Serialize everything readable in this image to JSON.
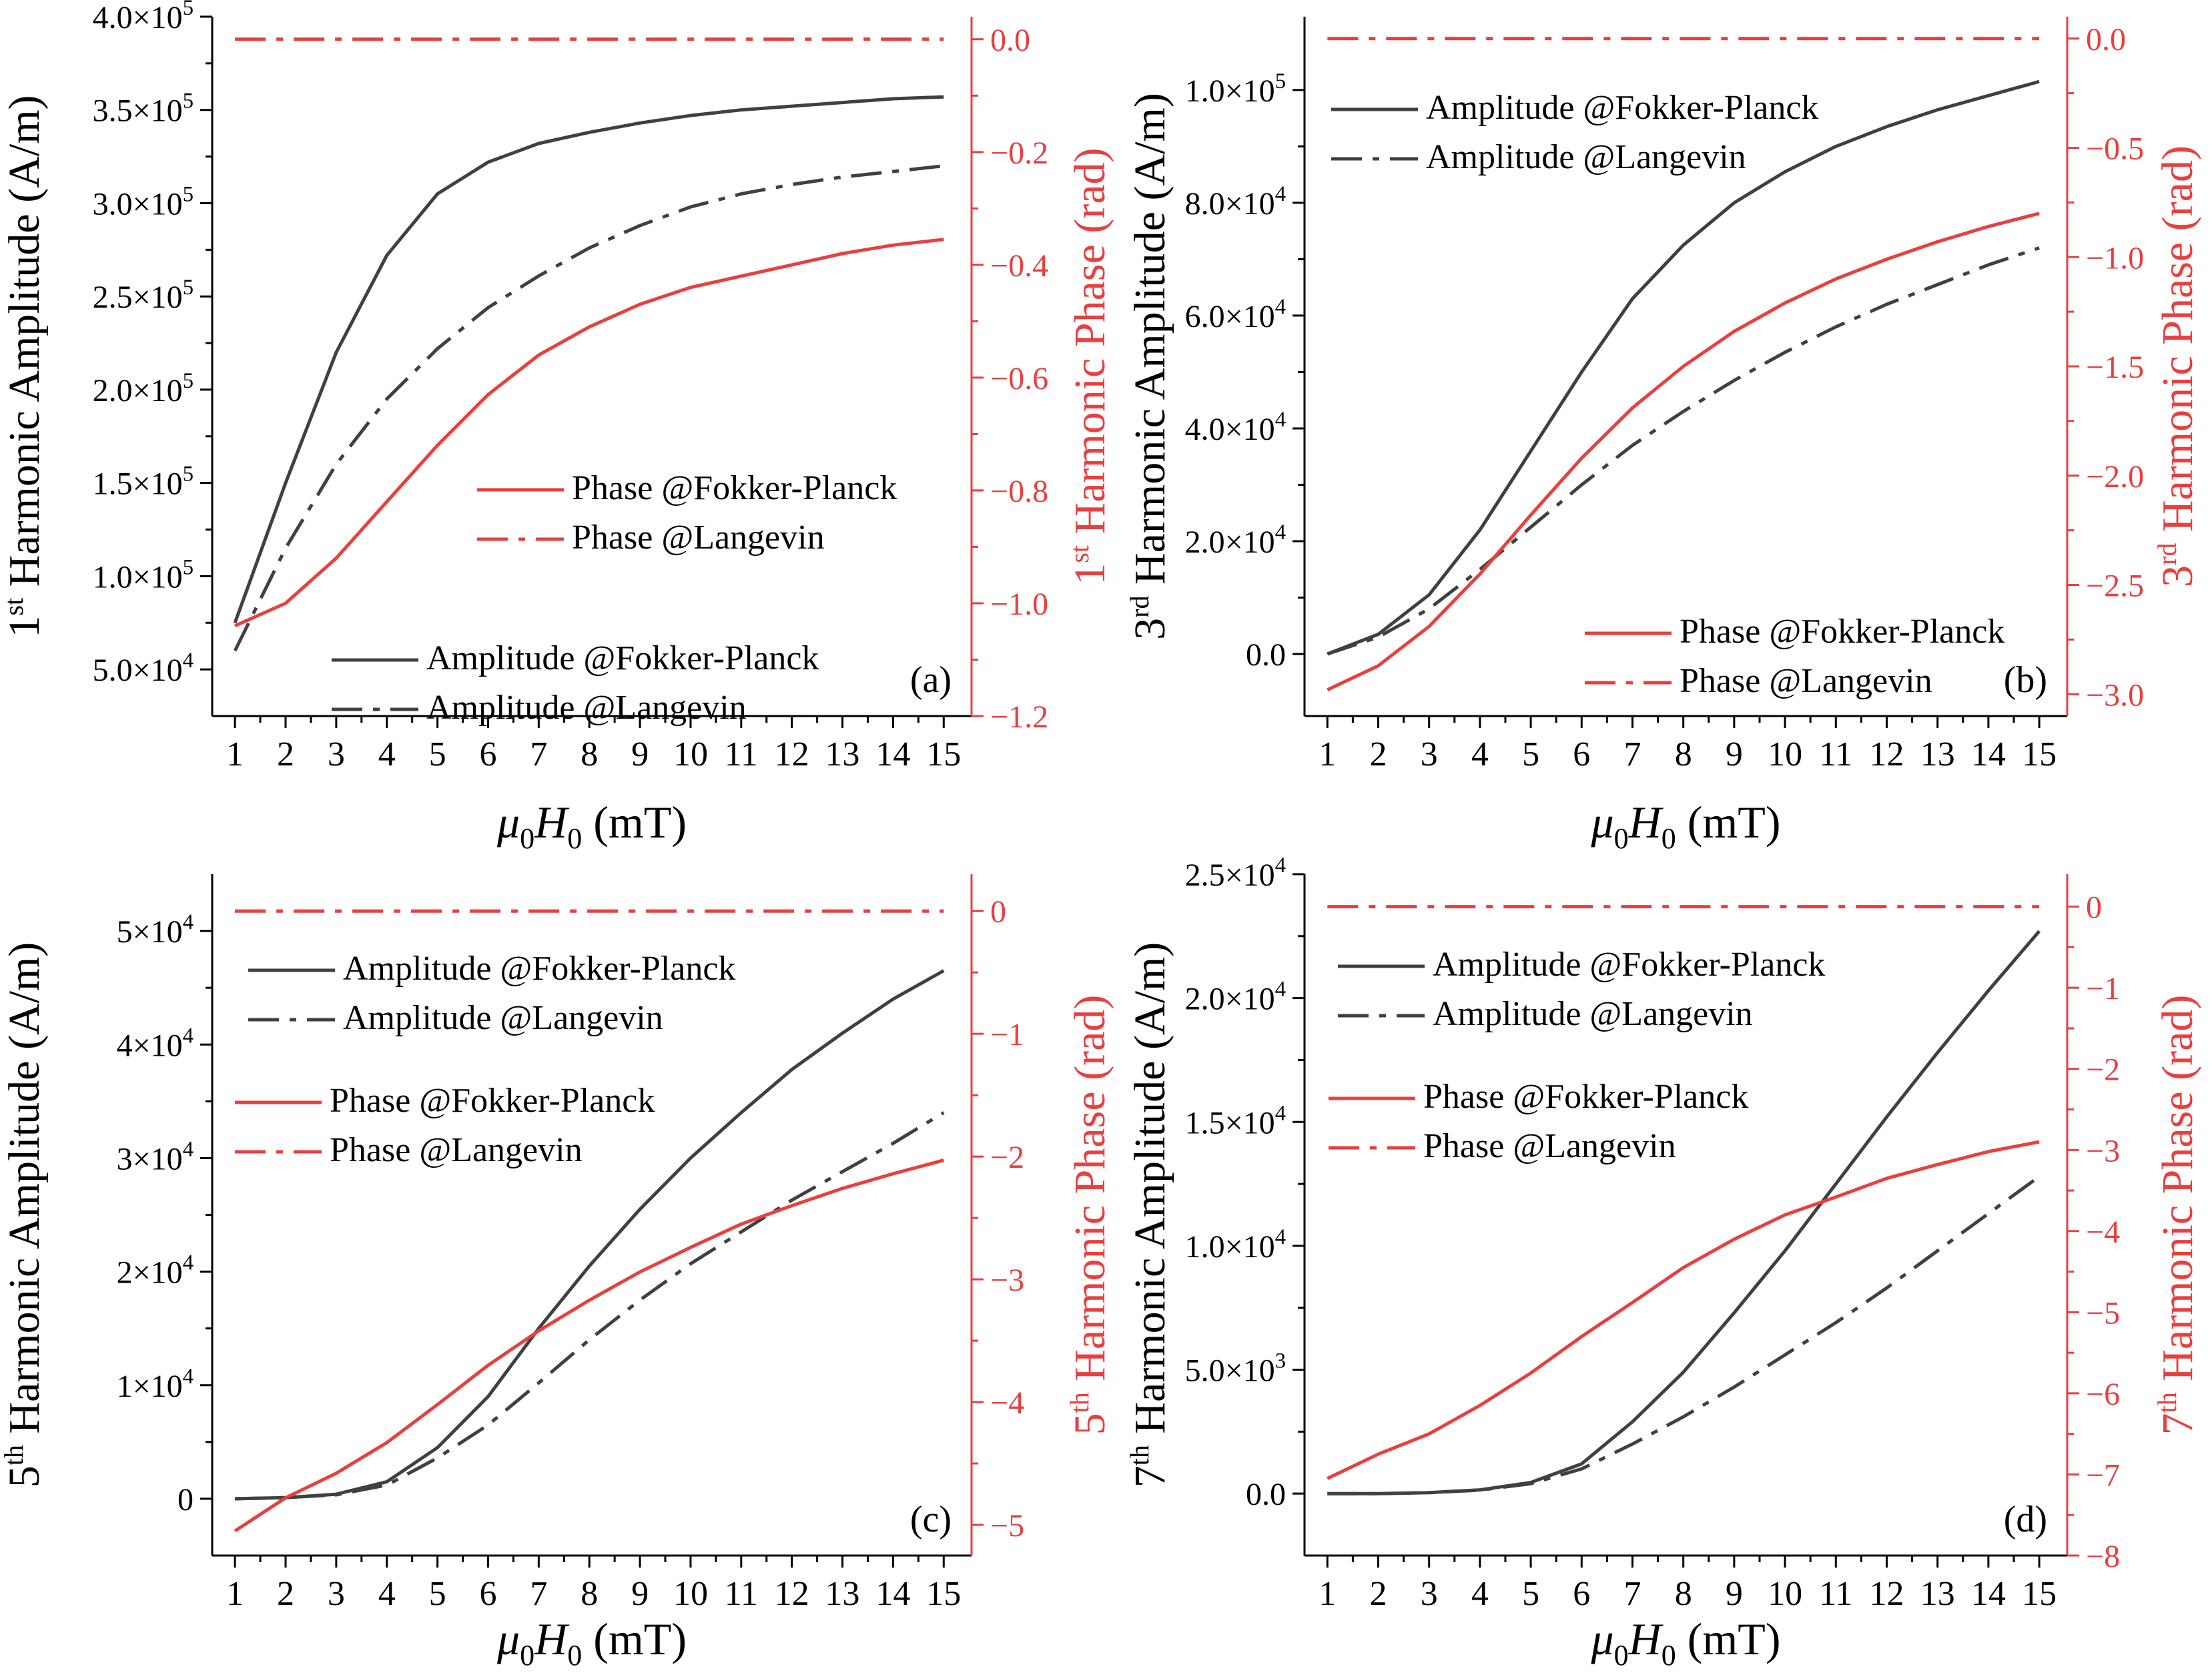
{
  "chart_data": [
    {
      "panel": "(a)",
      "type": "line",
      "x": [
        1,
        2,
        3,
        4,
        5,
        6,
        7,
        8,
        9,
        10,
        11,
        12,
        13,
        14,
        15
      ],
      "xlabel": "μ0H0 (mT)",
      "ylabel_left": "1st Harmonic Amplitude (A/m)",
      "ylabel_right": "1st Harmonic Phase (rad)",
      "ylim_left": [
        25000,
        400000
      ],
      "ylim_right": [
        -1.2,
        0.04
      ],
      "left_ticks": [
        {
          "v": 50000,
          "m": "5.0×10",
          "e": "4"
        },
        {
          "v": 100000,
          "m": "1.0×10",
          "e": "5"
        },
        {
          "v": 150000,
          "m": "1.5×10",
          "e": "5"
        },
        {
          "v": 200000,
          "m": "2.0×10",
          "e": "5"
        },
        {
          "v": 250000,
          "m": "2.5×10",
          "e": "5"
        },
        {
          "v": 300000,
          "m": "3.0×10",
          "e": "5"
        },
        {
          "v": 350000,
          "m": "3.5×10",
          "e": "5"
        },
        {
          "v": 400000,
          "m": "4.0×10",
          "e": "5"
        }
      ],
      "right_ticks": [
        {
          "v": 0.0,
          "label": "0.0"
        },
        {
          "v": -0.2,
          "label": "−0.2"
        },
        {
          "v": -0.4,
          "label": "−0.4"
        },
        {
          "v": -0.6,
          "label": "−0.6"
        },
        {
          "v": -0.8,
          "label": "−0.8"
        },
        {
          "v": -1.0,
          "label": "−1.0"
        },
        {
          "v": -1.2,
          "label": "−1.2"
        }
      ],
      "series": [
        {
          "name": "Amplitude @Fokker-Planck",
          "axis": "left",
          "style": "solid",
          "color": "#404040",
          "values": [
            75000,
            150000,
            220000,
            272000,
            305000,
            322000,
            332000,
            338000,
            343000,
            347000,
            350000,
            352000,
            354000,
            356000,
            357000
          ]
        },
        {
          "name": "Amplitude @Langevin",
          "axis": "left",
          "style": "dashdot",
          "color": "#404040",
          "values": [
            60000,
            115000,
            160000,
            195000,
            222000,
            244000,
            261000,
            276000,
            288000,
            298000,
            305000,
            310000,
            314000,
            317000,
            320000
          ]
        },
        {
          "name": "Phase @Fokker-Planck",
          "axis": "right",
          "style": "solid",
          "color": "#e83f3f",
          "values": [
            -1.04,
            -1.0,
            -0.92,
            -0.82,
            -0.72,
            -0.63,
            -0.56,
            -0.51,
            -0.47,
            -0.44,
            -0.42,
            -0.4,
            -0.38,
            -0.365,
            -0.355
          ]
        },
        {
          "name": "Phase @Langevin",
          "axis": "right",
          "style": "dashdot",
          "color": "#e83f3f",
          "values": [
            0,
            0,
            0,
            0,
            0,
            0,
            0,
            0,
            0,
            0,
            0,
            0,
            0,
            0,
            0
          ]
        }
      ],
      "legend_groups": [
        {
          "position": "middle-right",
          "items": [
            "Phase @Fokker-Planck",
            "Phase @Langevin"
          ]
        },
        {
          "position": "bottom-right",
          "items": [
            "Amplitude @Fokker-Planck",
            "Amplitude @Langevin"
          ]
        }
      ]
    },
    {
      "panel": "(b)",
      "type": "line",
      "x": [
        1,
        2,
        3,
        4,
        5,
        6,
        7,
        8,
        9,
        10,
        11,
        12,
        13,
        14,
        15
      ],
      "xlabel": "μ0H0 (mT)",
      "ylabel_left": "3rd Harmonic Amplitude (A/m)",
      "ylabel_right": "3rd Harmonic Phase (rad)",
      "ylim_left": [
        -11000,
        113000
      ],
      "ylim_right": [
        -3.1,
        0.1
      ],
      "left_ticks": [
        {
          "v": 0,
          "m": "0.0",
          "e": ""
        },
        {
          "v": 20000,
          "m": "2.0×10",
          "e": "4"
        },
        {
          "v": 40000,
          "m": "4.0×10",
          "e": "4"
        },
        {
          "v": 60000,
          "m": "6.0×10",
          "e": "4"
        },
        {
          "v": 80000,
          "m": "8.0×10",
          "e": "4"
        },
        {
          "v": 100000,
          "m": "1.0×10",
          "e": "5"
        }
      ],
      "right_ticks": [
        {
          "v": 0.0,
          "label": "0.0"
        },
        {
          "v": -0.5,
          "label": "−0.5"
        },
        {
          "v": -1.0,
          "label": "−1.0"
        },
        {
          "v": -1.5,
          "label": "−1.5"
        },
        {
          "v": -2.0,
          "label": "−2.0"
        },
        {
          "v": -2.5,
          "label": "−2.5"
        },
        {
          "v": -3.0,
          "label": "−3.0"
        }
      ],
      "series": [
        {
          "name": "Amplitude @Fokker-Planck",
          "axis": "left",
          "style": "solid",
          "color": "#404040",
          "values": [
            0,
            3500,
            10500,
            22000,
            36000,
            50000,
            63000,
            72500,
            80000,
            85500,
            90000,
            93500,
            96500,
            99000,
            101500
          ]
        },
        {
          "name": "Amplitude @Langevin",
          "axis": "left",
          "style": "dashdot",
          "color": "#404040",
          "values": [
            0,
            3000,
            8000,
            15000,
            22500,
            30000,
            37000,
            43000,
            48500,
            53500,
            58000,
            62000,
            65500,
            69000,
            72000
          ]
        },
        {
          "name": "Phase @Fokker-Planck",
          "axis": "right",
          "style": "solid",
          "color": "#e83f3f",
          "values": [
            -2.98,
            -2.87,
            -2.69,
            -2.45,
            -2.18,
            -1.92,
            -1.69,
            -1.5,
            -1.34,
            -1.21,
            -1.1,
            -1.01,
            -0.93,
            -0.86,
            -0.8
          ]
        },
        {
          "name": "Phase @Langevin",
          "axis": "right",
          "style": "dashdot",
          "color": "#e83f3f",
          "values": [
            0,
            0,
            0,
            0,
            0,
            0,
            0,
            0,
            0,
            0,
            0,
            0,
            0,
            0,
            0
          ]
        }
      ],
      "legend_groups": [
        {
          "position": "top-left",
          "items": [
            "Amplitude @Fokker-Planck",
            "Amplitude @Langevin"
          ]
        },
        {
          "position": "bottom-right",
          "items": [
            "Phase @Fokker-Planck",
            "Phase @Langevin"
          ]
        }
      ]
    },
    {
      "panel": "(c)",
      "type": "line",
      "x": [
        1,
        2,
        3,
        4,
        5,
        6,
        7,
        8,
        9,
        10,
        11,
        12,
        13,
        14,
        15
      ],
      "xlabel": "μ0H0 (mT)",
      "ylabel_left": "5th Harmonic Amplitude (A/m)",
      "ylabel_right": "5th Harmonic Phase (rad)",
      "ylim_left": [
        -5000,
        55000
      ],
      "ylim_right": [
        -5.25,
        0.3
      ],
      "left_ticks": [
        {
          "v": 0,
          "m": "0",
          "e": ""
        },
        {
          "v": 10000,
          "m": "1×10",
          "e": "4"
        },
        {
          "v": 20000,
          "m": "2×10",
          "e": "4"
        },
        {
          "v": 30000,
          "m": "3×10",
          "e": "4"
        },
        {
          "v": 40000,
          "m": "4×10",
          "e": "4"
        },
        {
          "v": 50000,
          "m": "5×10",
          "e": "4"
        }
      ],
      "right_ticks": [
        {
          "v": 0,
          "label": "0"
        },
        {
          "v": -1,
          "label": "−1"
        },
        {
          "v": -2,
          "label": "−2"
        },
        {
          "v": -3,
          "label": "−3"
        },
        {
          "v": -4,
          "label": "−4"
        },
        {
          "v": -5,
          "label": "−5"
        }
      ],
      "series": [
        {
          "name": "Amplitude @Fokker-Planck",
          "axis": "left",
          "style": "solid",
          "color": "#404040",
          "values": [
            0,
            100,
            400,
            1500,
            4500,
            9000,
            15000,
            20500,
            25500,
            30000,
            34000,
            37800,
            41000,
            44000,
            46500
          ]
        },
        {
          "name": "Amplitude @Langevin",
          "axis": "left",
          "style": "dashdot",
          "color": "#404040",
          "values": [
            0,
            100,
            350,
            1200,
            3600,
            6500,
            10200,
            14000,
            17500,
            20700,
            23500,
            26300,
            28800,
            31300,
            34000
          ]
        },
        {
          "name": "Phase @Fokker-Planck",
          "axis": "right",
          "style": "solid",
          "color": "#e83f3f",
          "values": [
            -5.05,
            -4.78,
            -4.58,
            -4.33,
            -4.02,
            -3.7,
            -3.42,
            -3.17,
            -2.94,
            -2.74,
            -2.55,
            -2.4,
            -2.26,
            -2.14,
            -2.03
          ]
        },
        {
          "name": "Phase @Langevin",
          "axis": "right",
          "style": "dashdot",
          "color": "#e83f3f",
          "values": [
            0,
            0,
            0,
            0,
            0,
            0,
            0,
            0,
            0,
            0,
            0,
            0,
            0,
            0,
            0
          ]
        }
      ],
      "legend_groups": [
        {
          "position": "upper-left",
          "items": [
            "Amplitude @Fokker-Planck",
            "Amplitude @Langevin"
          ]
        },
        {
          "position": "middle-left",
          "items": [
            "Phase @Fokker-Planck",
            "Phase @Langevin"
          ]
        }
      ]
    },
    {
      "panel": "(d)",
      "type": "line",
      "x": [
        1,
        2,
        3,
        4,
        5,
        6,
        7,
        8,
        9,
        10,
        11,
        12,
        13,
        14,
        15
      ],
      "xlabel": "μ0H0 (mT)",
      "ylabel_left": "7th Harmonic Amplitude (A/m)",
      "ylabel_right": "7th Harmonic Phase (rad)",
      "ylim_left": [
        -2500,
        25000
      ],
      "ylim_right": [
        -8,
        0.4
      ],
      "left_ticks": [
        {
          "v": 0,
          "m": "0.0",
          "e": ""
        },
        {
          "v": 5000,
          "m": "5.0×10",
          "e": "3"
        },
        {
          "v": 10000,
          "m": "1.0×10",
          "e": "4"
        },
        {
          "v": 15000,
          "m": "1.5×10",
          "e": "4"
        },
        {
          "v": 20000,
          "m": "2.0×10",
          "e": "4"
        },
        {
          "v": 25000,
          "m": "2.5×10",
          "e": "4"
        }
      ],
      "right_ticks": [
        {
          "v": 0,
          "label": "0"
        },
        {
          "v": -1,
          "label": "−1"
        },
        {
          "v": -2,
          "label": "−2"
        },
        {
          "v": -3,
          "label": "−3"
        },
        {
          "v": -4,
          "label": "−4"
        },
        {
          "v": -5,
          "label": "−5"
        },
        {
          "v": -6,
          "label": "−6"
        },
        {
          "v": -7,
          "label": "−7"
        },
        {
          "v": -8,
          "label": "−8"
        }
      ],
      "series": [
        {
          "name": "Amplitude @Fokker-Planck",
          "axis": "left",
          "style": "solid",
          "color": "#404040",
          "values": [
            0,
            0,
            40,
            150,
            450,
            1200,
            2900,
            4900,
            7300,
            9800,
            12500,
            15200,
            17800,
            20300,
            22700
          ]
        },
        {
          "name": "Amplitude @Langevin",
          "axis": "left",
          "style": "dashdot",
          "color": "#404040",
          "values": [
            0,
            0,
            40,
            140,
            400,
            1000,
            2000,
            3100,
            4300,
            5600,
            6900,
            8300,
            9800,
            11300,
            12800
          ]
        },
        {
          "name": "Phase @Fokker-Planck",
          "axis": "right",
          "style": "solid",
          "color": "#e83f3f",
          "values": [
            -7.05,
            -6.75,
            -6.5,
            -6.15,
            -5.75,
            -5.3,
            -4.88,
            -4.45,
            -4.1,
            -3.8,
            -3.58,
            -3.35,
            -3.18,
            -3.02,
            -2.9
          ]
        },
        {
          "name": "Phase @Langevin",
          "axis": "right",
          "style": "dashdot",
          "color": "#e83f3f",
          "values": [
            0,
            0,
            0,
            0,
            0,
            0,
            0,
            0,
            0,
            0,
            0,
            0,
            0,
            0,
            0
          ]
        }
      ],
      "legend_groups": [
        {
          "position": "upper-left",
          "items": [
            "Amplitude @Fokker-Planck",
            "Amplitude @Langevin"
          ]
        },
        {
          "position": "middle-left",
          "items": [
            "Phase @Fokker-Planck",
            "Phase @Langevin"
          ]
        }
      ]
    }
  ],
  "colors": {
    "amplitude": "#404040",
    "phase": "#e83f3f",
    "axis_left": "#000000"
  },
  "labels": {
    "xlabel_mu": "μ",
    "xlabel_sub0": "0",
    "xlabel_H": "H",
    "xlabel_unit": " (mT)",
    "ordinals": [
      "st",
      "rd",
      "th",
      "th"
    ],
    "harmonic_numbers": [
      "1",
      "3",
      "5",
      "7"
    ],
    "amplitude_suffix": " Harmonic Amplitude (A/m)",
    "phase_suffix": " Harmonic Phase (rad)"
  }
}
